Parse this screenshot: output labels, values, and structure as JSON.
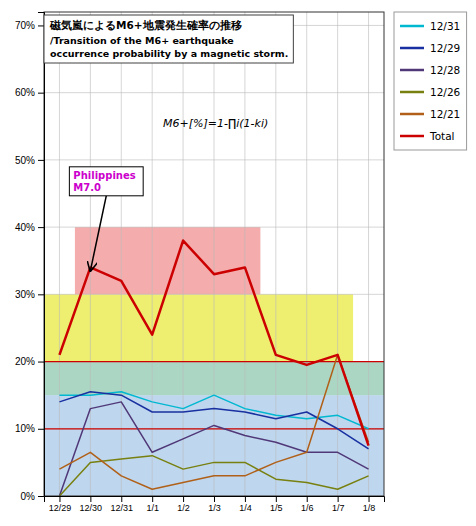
{
  "chart_data": {
    "type": "line",
    "title": "磁気嵐によるM6+地震発生確率の推移",
    "subtitle": "/Transition of the M6+ earthquake\noccurrence probability by a magnetic storm.",
    "categories": [
      "12/29",
      "12/30",
      "12/31",
      "1/1",
      "1/2",
      "1/3",
      "1/4",
      "1/5",
      "1/6",
      "1/7",
      "1/8"
    ],
    "series": [
      {
        "name": "12/31",
        "color": "#00b8d0",
        "values": [
          0.15,
          0.15,
          0.155,
          0.14,
          0.13,
          0.15,
          0.13,
          0.12,
          0.115,
          0.12,
          0.1
        ]
      },
      {
        "name": "12/29",
        "color": "#1830a0",
        "values": [
          0.14,
          0.155,
          0.15,
          0.125,
          0.125,
          0.13,
          0.125,
          0.115,
          0.125,
          0.1,
          0.07
        ]
      },
      {
        "name": "12/28",
        "color": "#503878",
        "values": [
          0.0,
          0.13,
          0.14,
          0.065,
          0.085,
          0.105,
          0.09,
          0.08,
          0.065,
          0.065,
          0.04
        ]
      },
      {
        "name": "12/26",
        "color": "#788010",
        "values": [
          0.0,
          0.05,
          0.055,
          0.06,
          0.04,
          0.05,
          0.05,
          0.025,
          0.02,
          0.01,
          0.03
        ]
      },
      {
        "name": "12/21",
        "color": "#b06018",
        "values": [
          0.04,
          0.065,
          0.03,
          0.01,
          0.02,
          0.03,
          0.03,
          0.05,
          0.065,
          0.21,
          0.08
        ]
      },
      {
        "name": "Total",
        "color": "#cc0000",
        "values": [
          0.21,
          0.34,
          0.32,
          0.24,
          0.38,
          0.33,
          0.34,
          0.21,
          0.195,
          0.21,
          0.075
        ]
      }
    ],
    "ylim": [
      0,
      0.72
    ],
    "yticks": [
      {
        "value": 0,
        "label": "0%"
      },
      {
        "value": 0.1,
        "label": "10%"
      },
      {
        "value": 0.2,
        "label": "20%"
      },
      {
        "value": 0.3,
        "label": "30%"
      },
      {
        "value": 0.4,
        "label": "40%"
      },
      {
        "value": 0.5,
        "label": "50%"
      },
      {
        "value": 0.6,
        "label": "60%"
      },
      {
        "value": 0.7,
        "label": "70%"
      }
    ],
    "bands": [
      {
        "x": [
          "12/29",
          "1/8"
        ],
        "y": [
          0,
          0.15
        ],
        "color": "#a8c8e8"
      },
      {
        "x": [
          "12/29",
          "1/8"
        ],
        "y": [
          0.15,
          0.2
        ],
        "color": "#90c8b0"
      },
      {
        "x": [
          "12/29",
          "1/7"
        ],
        "y": [
          0.2,
          0.3
        ],
        "color": "#e8e840"
      },
      {
        "x": [
          "12/30",
          "1/4"
        ],
        "y": [
          0.3,
          0.4
        ],
        "color": "#f09090"
      }
    ],
    "hlines": [
      {
        "y": 0.1,
        "color": "#cc0000"
      },
      {
        "y": 0.2,
        "color": "#cc0000"
      }
    ],
    "annotations": [
      {
        "text": "Philippines\nM7.0",
        "x": "12/30",
        "y": 0.335,
        "color": "#cc00cc"
      },
      {
        "text": "M6+[%]=1-∏i(1-ki)"
      }
    ],
    "grid": true,
    "legend": "right"
  }
}
